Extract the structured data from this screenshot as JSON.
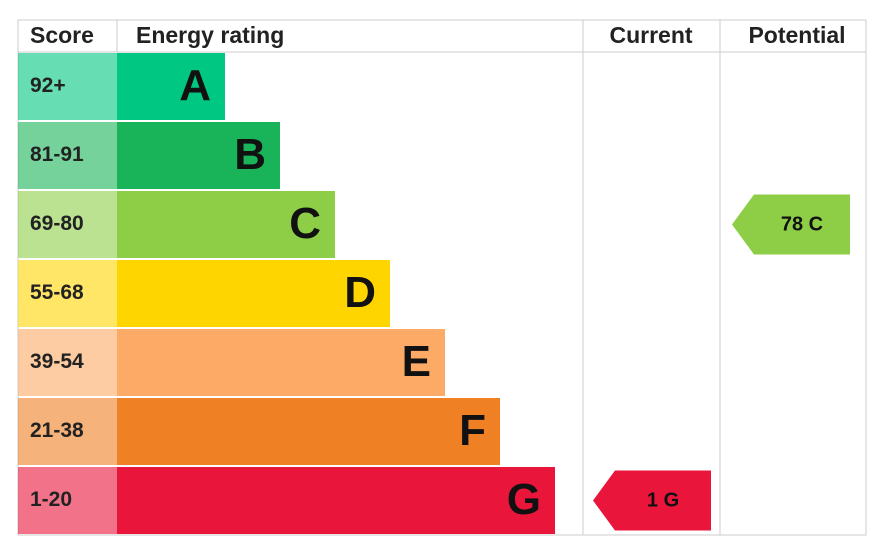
{
  "header": {
    "score": "Score",
    "energy_rating": "Energy rating",
    "current": "Current",
    "potential": "Potential"
  },
  "bands": [
    {
      "score": "92+",
      "letter": "A",
      "color": "#00c781"
    },
    {
      "score": "81-91",
      "letter": "B",
      "color": "#19b459"
    },
    {
      "score": "69-80",
      "letter": "C",
      "color": "#8dce46"
    },
    {
      "score": "55-68",
      "letter": "D",
      "color": "#ffd500"
    },
    {
      "score": "39-54",
      "letter": "E",
      "color": "#fcaa65"
    },
    {
      "score": "21-38",
      "letter": "F",
      "color": "#ef8023"
    },
    {
      "score": "1-20",
      "letter": "G",
      "color": "#e9153b"
    }
  ],
  "current": {
    "score": "1",
    "rating": "G"
  },
  "potential": {
    "score": "78",
    "rating": "C"
  }
}
